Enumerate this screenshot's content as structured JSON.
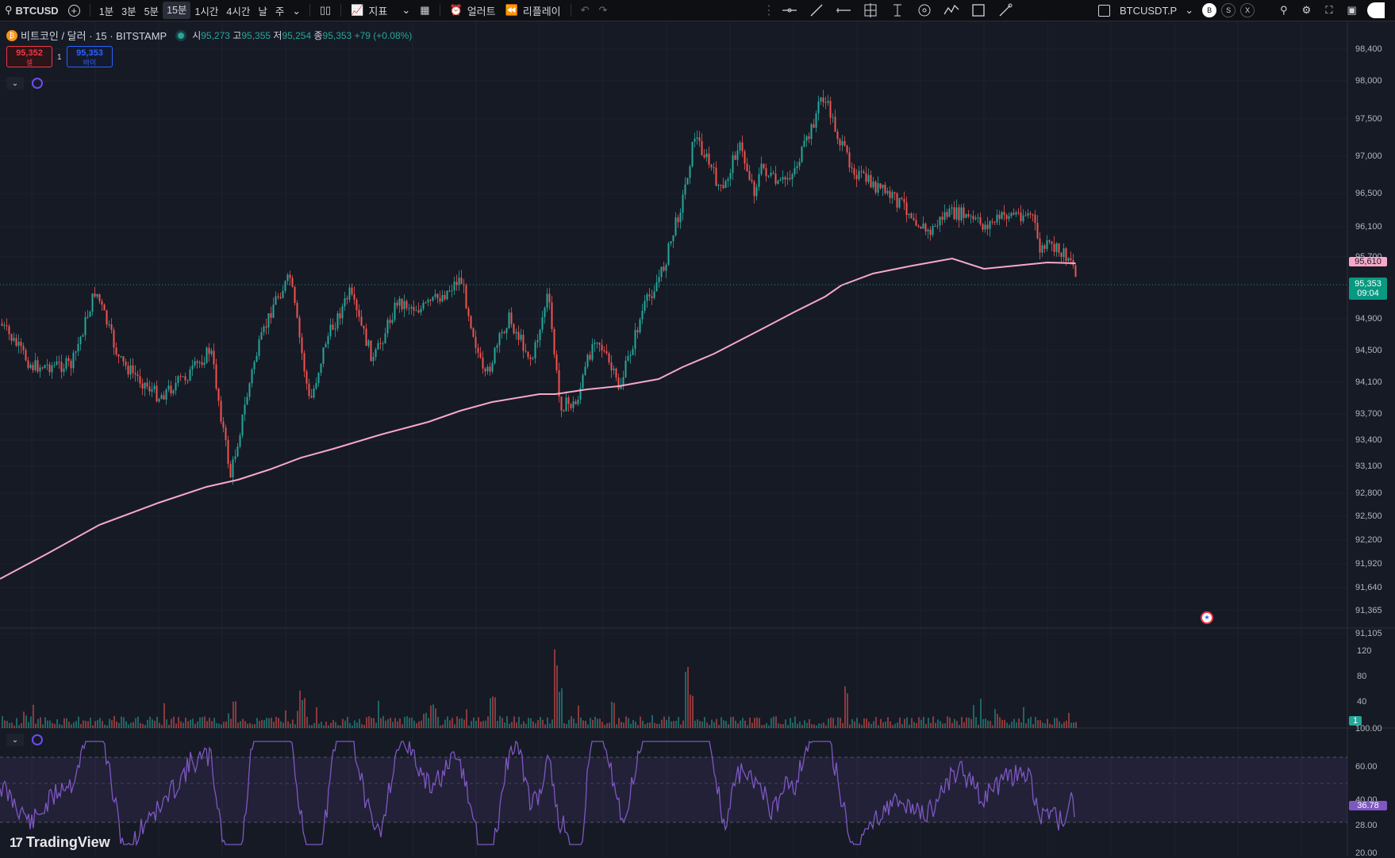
{
  "topbar": {
    "symbol": "BTCUSD",
    "timeframes": [
      "1분",
      "3분",
      "5분",
      "15분",
      "1시간",
      "4시간",
      "날",
      "주"
    ],
    "active_timeframe": "15분",
    "indicators_label": "지표",
    "alert_label": "얼러트",
    "replay_label": "리플레이",
    "linked_symbol": "BTCUSDT.P",
    "badges": [
      "B",
      "S",
      "X"
    ]
  },
  "legend": {
    "name": "비트코인 / 달러 · 15 · BITSTAMP",
    "open_label": "시",
    "open": "95,273",
    "high_label": "고",
    "high": "95,355",
    "low_label": "저",
    "low": "95,254",
    "close_label": "종",
    "close": "95,353",
    "change": "+79 (+0.08%)"
  },
  "trade": {
    "sell_price": "95,352",
    "sell_label": "셀",
    "buy_price": "95,353",
    "buy_label": "바이",
    "quantity": "1"
  },
  "price_axis": [
    "98,400",
    "98,000",
    "97,500",
    "97,000",
    "96,500",
    "96,100",
    "95,700",
    "94,900",
    "94,500",
    "94,100",
    "93,700",
    "93,400",
    "93,100",
    "92,800",
    "92,500",
    "92,200",
    "91,920",
    "91,640",
    "91,365",
    "91,105"
  ],
  "ma_tag": "95,610",
  "last_price_tag": "95,353",
  "countdown": "09:04",
  "volume_axis": [
    "120",
    "80",
    "40"
  ],
  "volume_tag": "1",
  "rsi_axis": [
    "100.00",
    "60.00",
    "40.00",
    "28.00",
    "20.00"
  ],
  "rsi_tag": "36.78",
  "brand": "TradingView",
  "colors": {
    "up": "#26a69a",
    "down": "#ef5350",
    "ma": "#f7a8c8",
    "rsi": "#7e57c2",
    "bg": "#161a25",
    "last_price": "#089981"
  }
}
